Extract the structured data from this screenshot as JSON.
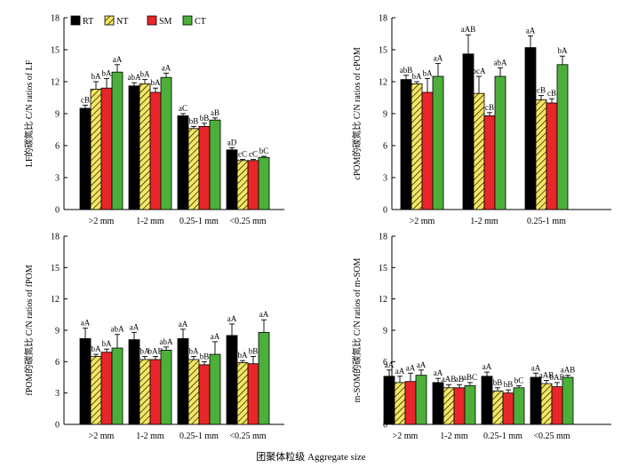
{
  "x_title": "团聚体粒级 Aggregate size",
  "legend": [
    {
      "name": "RT",
      "color": "#000000",
      "pattern": "solid"
    },
    {
      "name": "NT",
      "color": "#f5e663",
      "pattern": "hatch"
    },
    {
      "name": "SM",
      "color": "#e8262a",
      "pattern": "solid"
    },
    {
      "name": "CT",
      "color": "#4caf3a",
      "pattern": "solid"
    }
  ],
  "chart_data": [
    {
      "type": "bar",
      "ylabel": "LF的碳氮比 C/N ratios of LF",
      "ylim": [
        0,
        18
      ],
      "yticks": [
        0,
        3,
        6,
        9,
        12,
        15,
        18
      ],
      "categories": [
        ">2 mm",
        "1-2 mm",
        "0.25-1 mm",
        "<0.25 mm"
      ],
      "series": [
        {
          "name": "RT",
          "values": [
            9.5,
            11.6,
            8.8,
            5.6
          ],
          "errors": [
            0.3,
            0.3,
            0.2,
            0.2
          ],
          "letters": [
            "cB",
            "abA",
            "aC",
            "aD"
          ]
        },
        {
          "name": "NT",
          "values": [
            11.3,
            11.8,
            7.6,
            4.6
          ],
          "errors": [
            0.7,
            0.4,
            0.2,
            0.1
          ],
          "letters": [
            "bA",
            "bA",
            "bB",
            "cC"
          ]
        },
        {
          "name": "SM",
          "values": [
            11.4,
            11.0,
            7.8,
            4.6
          ],
          "errors": [
            0.9,
            0.4,
            0.3,
            0.1
          ],
          "letters": [
            "bA",
            "bA",
            "bB",
            "cC"
          ]
        },
        {
          "name": "CT",
          "values": [
            12.9,
            12.4,
            8.4,
            4.9
          ],
          "errors": [
            0.7,
            0.4,
            0.2,
            0.1
          ],
          "letters": [
            "aA",
            "aA",
            "aB",
            "bC"
          ]
        }
      ]
    },
    {
      "type": "bar",
      "ylabel": "cPOM的碳氮比 C/N ratios of cPOM",
      "ylim": [
        0,
        18
      ],
      "yticks": [
        0,
        3,
        6,
        9,
        12,
        15,
        18
      ],
      "categories": [
        ">2 mm",
        "1-2 mm",
        "0.25-1 mm"
      ],
      "series": [
        {
          "name": "RT",
          "values": [
            12.2,
            14.6,
            15.2
          ],
          "errors": [
            0.4,
            1.8,
            1.1
          ],
          "letters": [
            "abB",
            "aAB",
            "aA"
          ]
        },
        {
          "name": "NT",
          "values": [
            11.8,
            10.9,
            10.3
          ],
          "errors": [
            0.2,
            1.6,
            0.4
          ],
          "letters": [
            "bA",
            "bcA",
            "cB"
          ]
        },
        {
          "name": "SM",
          "values": [
            11.0,
            8.8,
            10.0
          ],
          "errors": [
            1.3,
            0.3,
            0.4
          ],
          "letters": [
            "bA",
            "cB",
            "cB"
          ]
        },
        {
          "name": "CT",
          "values": [
            12.5,
            12.5,
            13.6
          ],
          "errors": [
            1.2,
            0.8,
            0.8
          ],
          "letters": [
            "aA",
            "abA",
            "bA"
          ]
        }
      ]
    },
    {
      "type": "bar",
      "ylabel": "fPOM的碳氮比 C/N ratios of fPOM",
      "ylim": [
        0,
        18
      ],
      "yticks": [
        0,
        3,
        6,
        9,
        12,
        15,
        18
      ],
      "categories": [
        ">2 mm",
        "1-2 mm",
        "0.25-1 mm",
        "<0.25 mm"
      ],
      "series": [
        {
          "name": "RT",
          "values": [
            8.2,
            8.1,
            8.2,
            8.5
          ],
          "errors": [
            1.0,
            0.7,
            0.9,
            1.1
          ],
          "letters": [
            "aA",
            "aA",
            "aA",
            "aA"
          ]
        },
        {
          "name": "NT",
          "values": [
            6.5,
            6.2,
            6.2,
            5.9
          ],
          "errors": [
            0.2,
            0.3,
            0.3,
            0.2
          ],
          "letters": [
            "bA",
            "bA",
            "bA",
            "bA"
          ]
        },
        {
          "name": "SM",
          "values": [
            6.9,
            6.2,
            5.7,
            5.8
          ],
          "errors": [
            0.3,
            0.3,
            0.3,
            0.7
          ],
          "letters": [
            "bA",
            "bAB",
            "bB",
            "bB"
          ]
        },
        {
          "name": "CT",
          "values": [
            7.3,
            7.1,
            6.7,
            8.8
          ],
          "errors": [
            1.3,
            0.3,
            1.2,
            1.2
          ],
          "letters": [
            "abA",
            "abA",
            "aA",
            "aA"
          ]
        }
      ]
    },
    {
      "type": "bar",
      "ylabel": "m-SOM的碳氮比 C/N ratios of m-SOM",
      "ylim": [
        0,
        18
      ],
      "yticks": [
        0,
        3,
        6,
        9,
        12,
        15,
        18
      ],
      "categories": [
        ">2 mm",
        "1-2 mm",
        "0.25-1 mm",
        "<0.25 mm"
      ],
      "series": [
        {
          "name": "RT",
          "values": [
            4.6,
            4.0,
            4.6,
            4.5
          ],
          "errors": [
            0.6,
            0.4,
            0.4,
            0.4
          ],
          "letters": [
            "aA",
            "aA",
            "aA",
            "aA"
          ]
        },
        {
          "name": "NT",
          "values": [
            4.0,
            3.5,
            3.2,
            3.9
          ],
          "errors": [
            0.6,
            0.3,
            0.3,
            0.3
          ],
          "letters": [
            "aA",
            "aAB",
            "bB",
            "aAB"
          ]
        },
        {
          "name": "SM",
          "values": [
            4.1,
            3.5,
            3.0,
            3.6
          ],
          "errors": [
            0.8,
            0.3,
            0.3,
            0.4
          ],
          "letters": [
            "aA",
            "aB",
            "bB",
            "bAB"
          ]
        },
        {
          "name": "CT",
          "values": [
            4.7,
            3.7,
            3.5,
            4.5
          ],
          "errors": [
            0.5,
            0.3,
            0.2,
            0.2
          ],
          "letters": [
            "aA",
            "aBC",
            "bC",
            "aAB"
          ]
        }
      ]
    }
  ]
}
